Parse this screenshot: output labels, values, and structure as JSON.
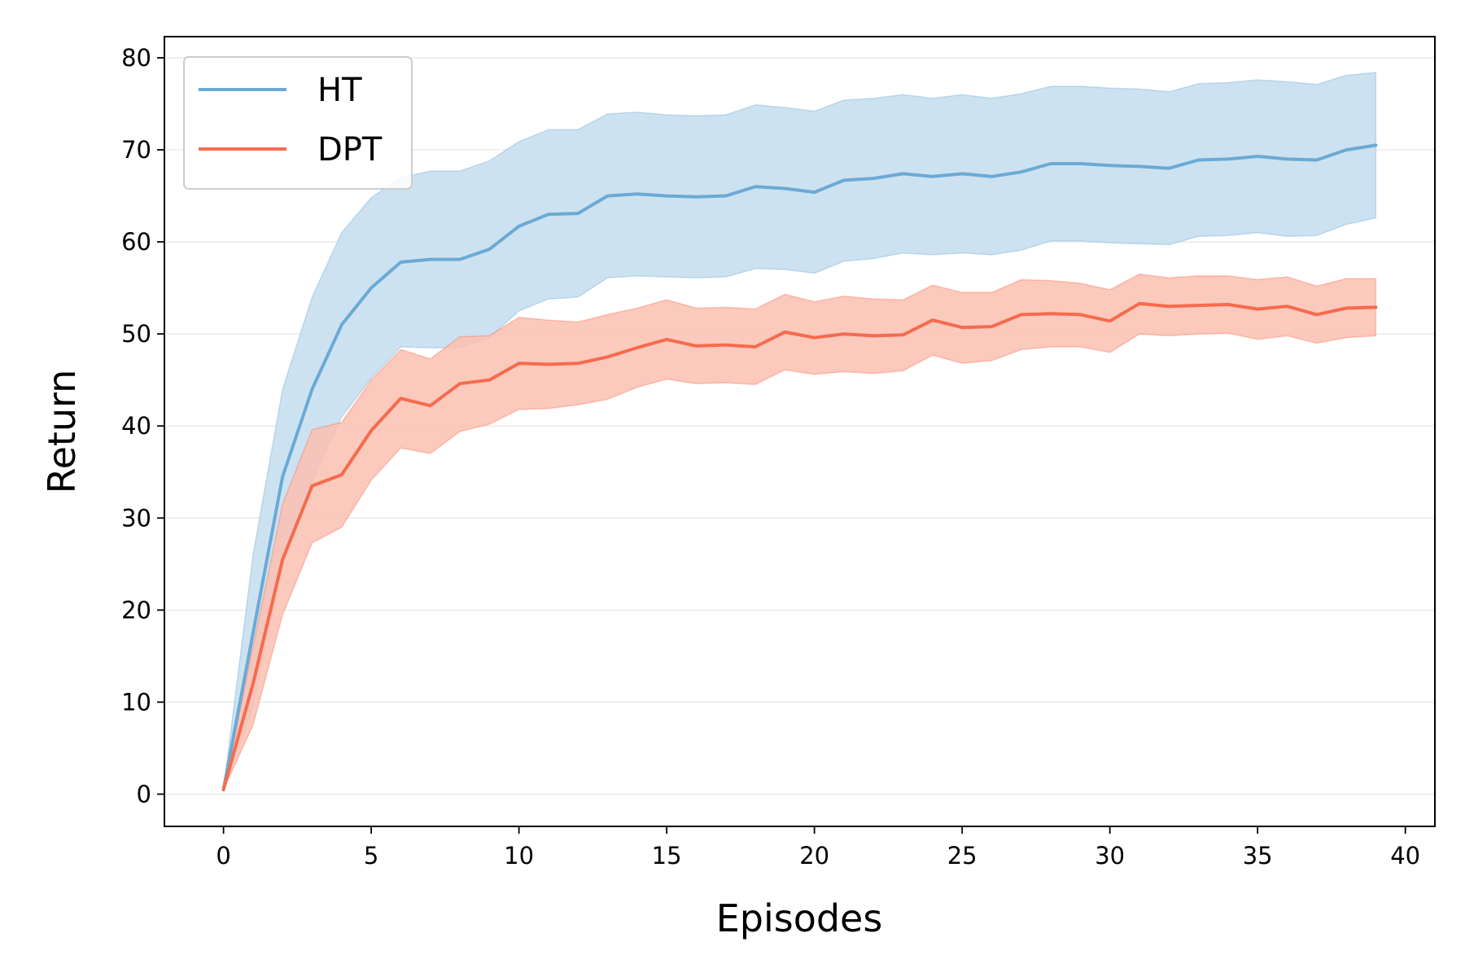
{
  "chart_data": {
    "type": "line",
    "title": "",
    "xlabel": "Episodes",
    "ylabel": "Return",
    "xlim": [
      -2,
      41
    ],
    "ylim": [
      -3.5,
      82.3
    ],
    "xticks": [
      0,
      5,
      10,
      15,
      20,
      25,
      30,
      35,
      40
    ],
    "yticks": [
      0,
      10,
      20,
      30,
      40,
      50,
      60,
      70,
      80
    ],
    "grid": "horizontal",
    "legend_position": "top-left",
    "x": [
      0,
      1,
      2,
      3,
      4,
      5,
      6,
      7,
      8,
      9,
      10,
      11,
      12,
      13,
      14,
      15,
      16,
      17,
      18,
      19,
      20,
      21,
      22,
      23,
      24,
      25,
      26,
      27,
      28,
      29,
      30,
      31,
      32,
      33,
      34,
      35,
      36,
      37,
      38,
      39
    ],
    "series": [
      {
        "name": "HT",
        "color": "#6aaad5",
        "band_color": "#c4ddef",
        "mean": [
          0.5,
          17.5,
          34.5,
          44.0,
          51.0,
          55.0,
          57.8,
          58.1,
          58.1,
          59.2,
          61.7,
          63.0,
          63.1,
          65.0,
          65.2,
          65.0,
          64.9,
          65.0,
          66.0,
          65.8,
          65.4,
          66.7,
          66.9,
          67.4,
          67.1,
          67.4,
          67.1,
          67.6,
          68.5,
          68.5,
          68.3,
          68.2,
          68.0,
          68.9,
          69.0,
          69.3,
          69.0,
          68.9,
          70.0,
          70.5
        ],
        "upper": [
          0.5,
          26.0,
          44.0,
          54.0,
          61.0,
          64.8,
          67.0,
          67.7,
          67.7,
          68.8,
          70.9,
          72.2,
          72.2,
          73.9,
          74.1,
          73.8,
          73.7,
          73.8,
          74.9,
          74.6,
          74.2,
          75.4,
          75.6,
          76.0,
          75.6,
          76.0,
          75.6,
          76.1,
          76.9,
          76.9,
          76.7,
          76.6,
          76.3,
          77.2,
          77.3,
          77.6,
          77.4,
          77.1,
          78.1,
          78.4
        ],
        "lower": [
          0.5,
          9.5,
          25.0,
          34.0,
          41.0,
          45.2,
          48.6,
          48.5,
          48.5,
          49.6,
          52.5,
          53.8,
          54.0,
          56.1,
          56.3,
          56.2,
          56.1,
          56.2,
          57.1,
          57.0,
          56.6,
          57.9,
          58.2,
          58.8,
          58.6,
          58.8,
          58.6,
          59.1,
          60.1,
          60.1,
          59.9,
          59.8,
          59.7,
          60.6,
          60.7,
          61.0,
          60.6,
          60.7,
          61.9,
          62.6
        ]
      },
      {
        "name": "DPT",
        "color": "#f56b4d",
        "band_color": "#fbbfb1",
        "mean": [
          0.5,
          12.0,
          25.5,
          33.5,
          34.7,
          39.5,
          43.0,
          42.2,
          44.6,
          45.0,
          46.8,
          46.7,
          46.8,
          47.5,
          48.5,
          49.4,
          48.7,
          48.8,
          48.6,
          50.2,
          49.6,
          50.0,
          49.8,
          49.9,
          51.5,
          50.7,
          50.8,
          52.1,
          52.2,
          52.1,
          51.4,
          53.3,
          53.0,
          53.1,
          53.2,
          52.7,
          53.0,
          52.1,
          52.8,
          52.9
        ],
        "upper": [
          0.5,
          16.0,
          31.5,
          39.6,
          40.4,
          45.0,
          48.3,
          47.3,
          49.7,
          49.8,
          51.8,
          51.5,
          51.3,
          52.1,
          52.8,
          53.7,
          52.8,
          52.9,
          52.7,
          54.3,
          53.5,
          54.1,
          53.8,
          53.7,
          55.3,
          54.5,
          54.5,
          55.9,
          55.8,
          55.5,
          54.8,
          56.5,
          56.1,
          56.3,
          56.3,
          55.9,
          56.2,
          55.2,
          56.0,
          56.0
        ],
        "lower": [
          0.5,
          7.5,
          19.5,
          27.3,
          29.0,
          34.1,
          37.6,
          37.0,
          39.4,
          40.2,
          41.8,
          41.9,
          42.3,
          42.9,
          44.2,
          45.1,
          44.6,
          44.7,
          44.5,
          46.1,
          45.6,
          45.9,
          45.7,
          46.0,
          47.7,
          46.8,
          47.1,
          48.3,
          48.6,
          48.6,
          48.0,
          50.0,
          49.8,
          50.0,
          50.1,
          49.4,
          49.8,
          49.0,
          49.6,
          49.8
        ]
      }
    ]
  }
}
